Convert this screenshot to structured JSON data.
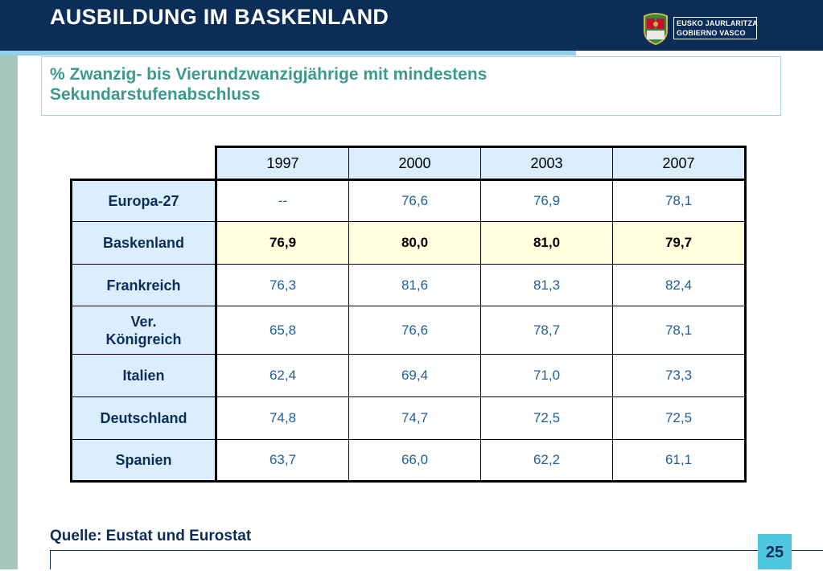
{
  "header": {
    "title": "AUSBILDUNG IM BASKENLAND",
    "logo_line1": "EUSKO JAURLARITZA",
    "logo_line2": "GOBIERNO VASCO"
  },
  "subtitle": {
    "line1": "% Zwanzig- bis Vierundzwanzigjährige mit mindestens",
    "line2": "Sekundarstufenabschluss"
  },
  "table": {
    "years": [
      "1997",
      "2000",
      "2003",
      "2007"
    ],
    "rows": [
      {
        "label": "Europa-27",
        "values": [
          "--",
          "76,6",
          "76,9",
          "78,1"
        ]
      },
      {
        "label": "Baskenland",
        "values": [
          "76,9",
          "80,0",
          "81,0",
          "79,7"
        ]
      },
      {
        "label": "Frankreich",
        "values": [
          "76,3",
          "81,6",
          "81,3",
          "82,4"
        ]
      },
      {
        "label": "Ver.",
        "label2": "Königreich",
        "values": [
          "65,8",
          "76,6",
          "78,7",
          "78,1"
        ]
      },
      {
        "label": "Italien",
        "values": [
          "62,4",
          "69,4",
          "71,0",
          "73,3"
        ]
      },
      {
        "label": "Deutschland",
        "values": [
          "74,8",
          "74,7",
          "72,5",
          "72,5"
        ]
      },
      {
        "label": "Spanien",
        "values": [
          "63,7",
          "66,0",
          "62,2",
          "61,1"
        ]
      }
    ]
  },
  "footer": {
    "source": "Quelle: Eustat und Eurostat",
    "page": "25"
  },
  "colors": {
    "header_bg": "#0b2d57",
    "accent_cyan": "#8fd1ea",
    "subtitle_text": "#3a9a8d",
    "highlight_row": "#ffffdd",
    "label_bg": "#dbeeff"
  }
}
